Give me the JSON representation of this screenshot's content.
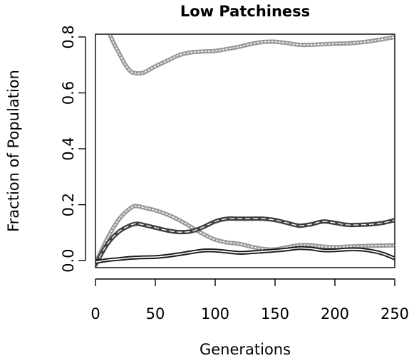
{
  "chart_data": {
    "type": "line",
    "title": "Low Patchiness",
    "xlabel": "Generations",
    "ylabel": "Fraction of Population",
    "xlim": [
      0,
      250
    ],
    "ylim": [
      0,
      0.8
    ],
    "xticks": [
      0,
      50,
      100,
      150,
      200,
      250
    ],
    "xtick_labels": [
      "0",
      "50",
      "100",
      "150",
      "200",
      "250"
    ],
    "yticks": [
      0.0,
      0.2,
      0.4,
      0.6,
      0.8
    ],
    "ytick_labels": [
      "0.0",
      "0.2",
      "0.4",
      "0.6",
      "0.8"
    ],
    "grid": false,
    "series": [
      {
        "color": "#9a9a9a",
        "style": "thick-dotted-overlay",
        "x": [
          10,
          15,
          20,
          25,
          30,
          35,
          40,
          45,
          50,
          60,
          70,
          80,
          90,
          100,
          110,
          120,
          130,
          140,
          150,
          160,
          170,
          180,
          190,
          200,
          210,
          220,
          230,
          240,
          250
        ],
        "y": [
          0.83,
          0.78,
          0.74,
          0.7,
          0.675,
          0.67,
          0.672,
          0.683,
          0.695,
          0.715,
          0.735,
          0.745,
          0.748,
          0.75,
          0.757,
          0.765,
          0.775,
          0.782,
          0.783,
          0.778,
          0.772,
          0.772,
          0.774,
          0.776,
          0.777,
          0.78,
          0.785,
          0.792,
          0.8
        ]
      },
      {
        "color": "#9a9a9a",
        "style": "thick-dotted-overlay",
        "x": [
          0,
          10,
          20,
          30,
          35,
          40,
          50,
          60,
          70,
          80,
          90,
          100,
          110,
          120,
          130,
          140,
          150,
          160,
          170,
          180,
          190,
          200,
          210,
          220,
          230,
          240,
          250
        ],
        "y": [
          -0.01,
          0.08,
          0.15,
          0.19,
          0.195,
          0.19,
          0.18,
          0.165,
          0.145,
          0.12,
          0.095,
          0.075,
          0.065,
          0.06,
          0.05,
          0.042,
          0.04,
          0.048,
          0.055,
          0.055,
          0.05,
          0.048,
          0.05,
          0.052,
          0.053,
          0.054,
          0.055
        ]
      },
      {
        "color": "#404040",
        "style": "thick-dashed-overlay",
        "x": [
          0,
          10,
          20,
          30,
          35,
          40,
          50,
          60,
          70,
          80,
          90,
          100,
          110,
          120,
          130,
          140,
          150,
          160,
          170,
          180,
          190,
          200,
          210,
          220,
          230,
          240,
          250
        ],
        "y": [
          -0.015,
          0.06,
          0.105,
          0.128,
          0.132,
          0.128,
          0.118,
          0.108,
          0.102,
          0.105,
          0.12,
          0.14,
          0.15,
          0.15,
          0.15,
          0.15,
          0.145,
          0.135,
          0.125,
          0.13,
          0.14,
          0.135,
          0.128,
          0.128,
          0.13,
          0.135,
          0.145
        ]
      },
      {
        "color": "#1a1a1a",
        "style": "double-thin",
        "x": [
          0,
          10,
          20,
          30,
          40,
          50,
          60,
          70,
          80,
          90,
          100,
          110,
          120,
          130,
          140,
          150,
          160,
          170,
          180,
          190,
          200,
          210,
          220,
          230,
          240,
          250
        ],
        "y": [
          -0.005,
          0.002,
          0.006,
          0.01,
          0.012,
          0.013,
          0.017,
          0.023,
          0.03,
          0.036,
          0.036,
          0.032,
          0.028,
          0.03,
          0.033,
          0.036,
          0.04,
          0.045,
          0.043,
          0.037,
          0.037,
          0.04,
          0.04,
          0.035,
          0.025,
          0.008
        ]
      }
    ]
  }
}
